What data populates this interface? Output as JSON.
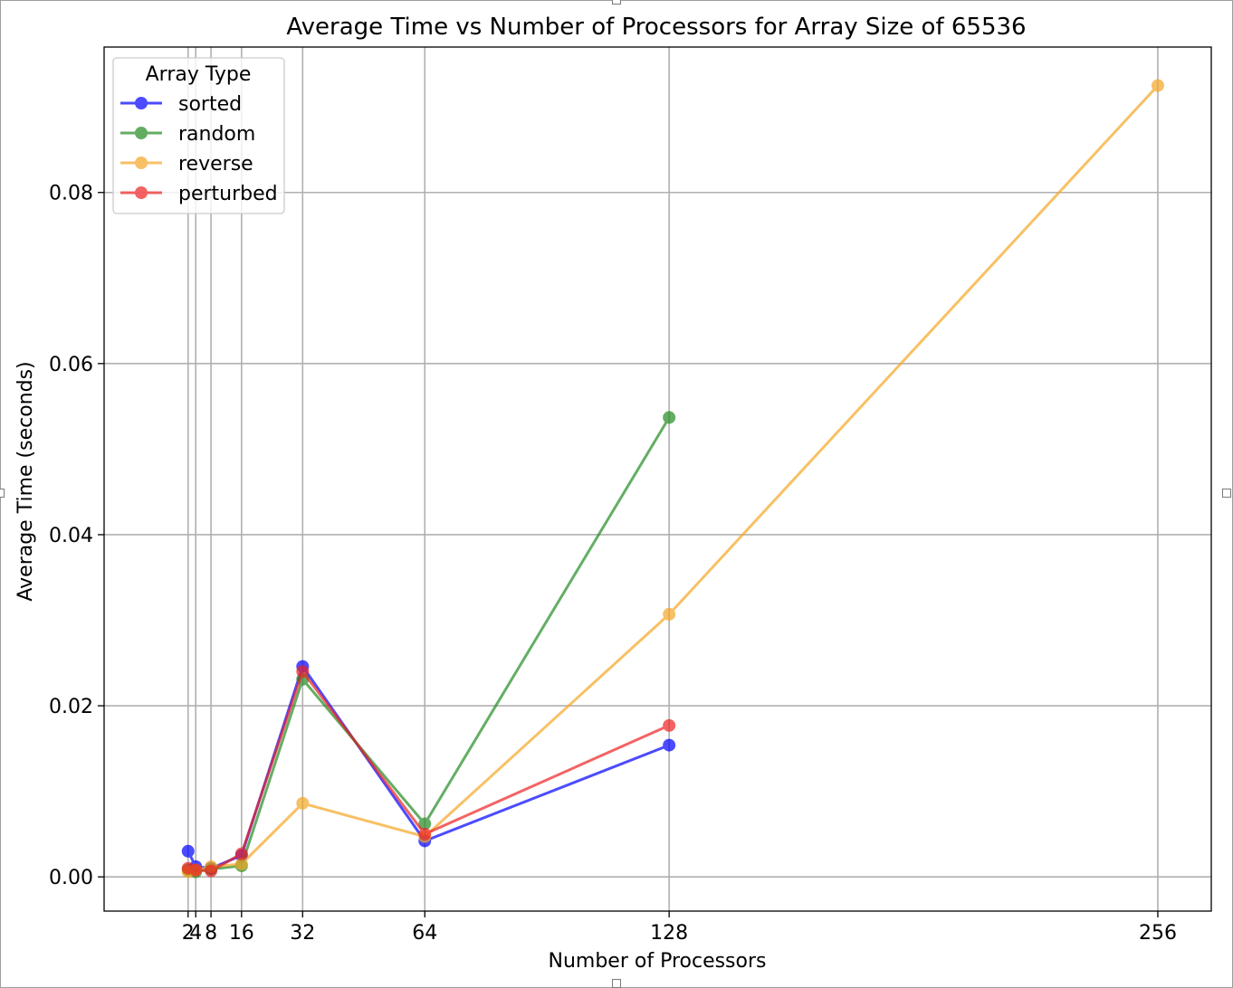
{
  "chart_data": {
    "type": "line",
    "title": "Average Time vs Number of Processors for Array Size of 65536",
    "xlabel": "Number of Processors",
    "ylabel": "Average Time (seconds)",
    "xlim": [
      -20,
      270
    ],
    "ylim": [
      -0.004,
      0.097
    ],
    "x_ticks": [
      2,
      4,
      8,
      16,
      32,
      64,
      128,
      256
    ],
    "y_ticks": [
      0.0,
      0.02,
      0.04,
      0.06,
      0.08
    ],
    "y_tick_labels": [
      "0.00",
      "0.02",
      "0.04",
      "0.06",
      "0.08"
    ],
    "grid": true,
    "legend": {
      "title": "Array Type",
      "placement": "top-left"
    },
    "series": [
      {
        "name": "sorted",
        "color": "#0000ff",
        "x": [
          2,
          4,
          8,
          16,
          32,
          64,
          128
        ],
        "values": [
          0.003,
          0.0012,
          0.001,
          0.0025,
          0.0246,
          0.0042,
          0.0154
        ]
      },
      {
        "name": "random",
        "color": "#228b22",
        "x": [
          2,
          4,
          8,
          16,
          32,
          64,
          128
        ],
        "values": [
          0.0008,
          0.0006,
          0.0009,
          0.0013,
          0.0231,
          0.0062,
          0.0537
        ]
      },
      {
        "name": "reverse",
        "color": "#f5a623",
        "x": [
          2,
          4,
          8,
          16,
          32,
          64,
          128,
          256
        ],
        "values": [
          0.0006,
          0.0008,
          0.0012,
          0.0015,
          0.0086,
          0.0047,
          0.0307,
          0.0925
        ]
      },
      {
        "name": "perturbed",
        "color": "#ee2222",
        "x": [
          2,
          4,
          8,
          16,
          32,
          64,
          128
        ],
        "values": [
          0.001,
          0.0008,
          0.0007,
          0.0027,
          0.024,
          0.005,
          0.0177
        ]
      }
    ]
  }
}
